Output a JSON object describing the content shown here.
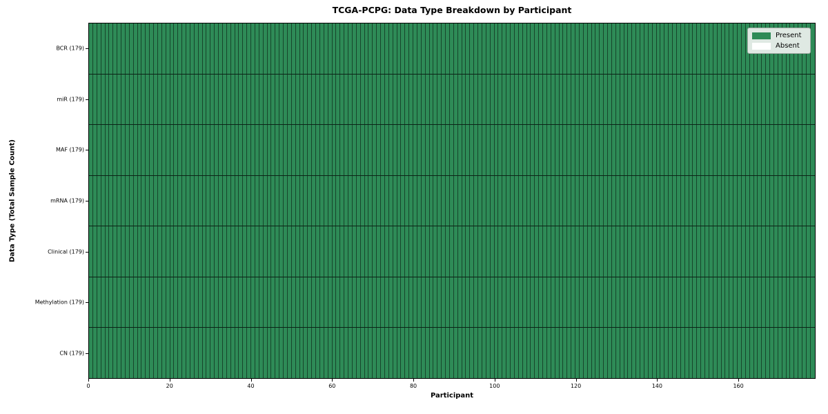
{
  "title": "TCGA-PCPG: Data Type Breakdown by Participant",
  "axes": {
    "xlabel": "Participant",
    "ylabel": "Data Type (Total Sample Count)"
  },
  "legend": {
    "items": [
      {
        "label": "Present",
        "color": "#2e8b57"
      },
      {
        "label": "Absent",
        "color": "#ffffff"
      }
    ]
  },
  "colors": {
    "present": "#2e8b57",
    "absent": "#ffffff",
    "cell_edge": "rgba(0,0,0,0.5)",
    "row_separator": "rgba(0,0,0,0.75)",
    "plot_border": "#000000",
    "legend_bg": "#dfe9e3"
  },
  "chart_data": {
    "type": "heatmap",
    "title": "TCGA-PCPG: Data Type Breakdown by Participant",
    "xlabel": "Participant",
    "ylabel": "Data Type (Total Sample Count)",
    "participants": 179,
    "x_ticks": [
      0,
      20,
      40,
      60,
      80,
      100,
      120,
      140,
      160
    ],
    "xlim": [
      0,
      179
    ],
    "grid": false,
    "legend_position": "upper right",
    "legend_entries": [
      "Present",
      "Absent"
    ],
    "value_colors": {
      "present": "#2e8b57",
      "absent": "#ffffff"
    },
    "rows": [
      {
        "label": "BCR (179)",
        "data_type": "BCR",
        "total": 179,
        "present": 179,
        "absent": 0
      },
      {
        "label": "miR (179)",
        "data_type": "miR",
        "total": 179,
        "present": 179,
        "absent": 0
      },
      {
        "label": "MAF (179)",
        "data_type": "MAF",
        "total": 179,
        "present": 179,
        "absent": 0
      },
      {
        "label": "mRNA (179)",
        "data_type": "mRNA",
        "total": 179,
        "present": 179,
        "absent": 0
      },
      {
        "label": "Clinical (179)",
        "data_type": "Clinical",
        "total": 179,
        "present": 179,
        "absent": 0
      },
      {
        "label": "Methylation (179)",
        "data_type": "Methylation",
        "total": 179,
        "present": 179,
        "absent": 0
      },
      {
        "label": "CN (179)",
        "data_type": "CN",
        "total": 179,
        "present": 179,
        "absent": 0
      }
    ]
  }
}
